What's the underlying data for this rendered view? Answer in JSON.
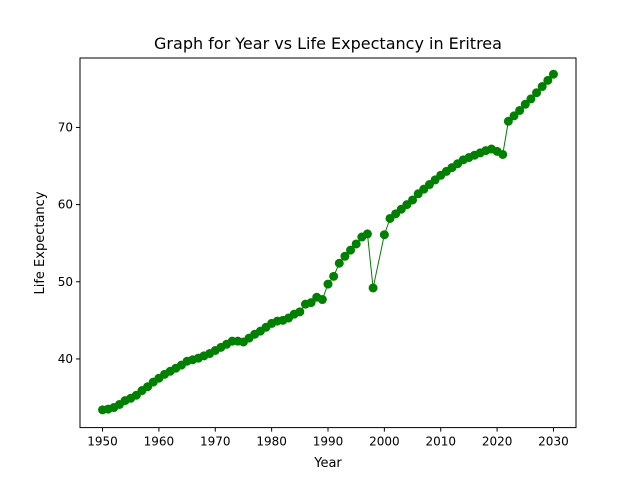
{
  "chart_data": {
    "type": "line",
    "title": "Graph for Year vs Life Expectancy in Eritrea",
    "xlabel": "Year",
    "ylabel": "Life Expectancy",
    "xlim": [
      1946,
      2034
    ],
    "ylim": [
      31.1,
      79.0
    ],
    "x_ticks": [
      1950,
      1960,
      1970,
      1980,
      1990,
      2000,
      2010,
      2020,
      2030
    ],
    "y_ticks": [
      40,
      50,
      60,
      70
    ],
    "grid": false,
    "legend": "none",
    "series_color": "#008000",
    "marker": "circle",
    "x": [
      1950,
      1951,
      1952,
      1953,
      1954,
      1955,
      1956,
      1957,
      1958,
      1959,
      1960,
      1961,
      1962,
      1963,
      1964,
      1965,
      1966,
      1967,
      1968,
      1969,
      1970,
      1971,
      1972,
      1973,
      1974,
      1975,
      1976,
      1977,
      1978,
      1979,
      1980,
      1981,
      1982,
      1983,
      1984,
      1985,
      1986,
      1987,
      1988,
      1989,
      1990,
      1991,
      1992,
      1993,
      1994,
      1995,
      1996,
      1997,
      1998,
      2000,
      2001,
      2002,
      2003,
      2004,
      2005,
      2006,
      2007,
      2008,
      2009,
      2010,
      2011,
      2012,
      2013,
      2014,
      2015,
      2016,
      2017,
      2018,
      2019,
      2020,
      2021,
      2022,
      2023,
      2024,
      2025,
      2026,
      2027,
      2028,
      2029,
      2030
    ],
    "y": [
      33.4,
      33.5,
      33.7,
      34.1,
      34.6,
      34.9,
      35.3,
      35.9,
      36.4,
      37.0,
      37.5,
      38.0,
      38.4,
      38.8,
      39.2,
      39.7,
      39.9,
      40.1,
      40.4,
      40.7,
      41.1,
      41.5,
      41.9,
      42.3,
      42.3,
      42.2,
      42.7,
      43.2,
      43.6,
      44.1,
      44.6,
      44.9,
      45.0,
      45.3,
      45.8,
      46.1,
      47.1,
      47.3,
      48.0,
      47.7,
      49.7,
      50.7,
      52.4,
      53.3,
      54.1,
      54.9,
      55.8,
      56.2,
      49.2,
      56.1,
      58.2,
      58.8,
      59.4,
      60.0,
      60.6,
      61.4,
      62.0,
      62.6,
      63.2,
      63.8,
      64.3,
      64.8,
      65.3,
      65.8,
      66.1,
      66.4,
      66.7,
      67.0,
      67.2,
      66.9,
      66.5,
      70.8,
      71.5,
      72.2,
      73.0,
      73.7,
      74.5,
      75.3,
      76.1,
      76.9
    ]
  }
}
